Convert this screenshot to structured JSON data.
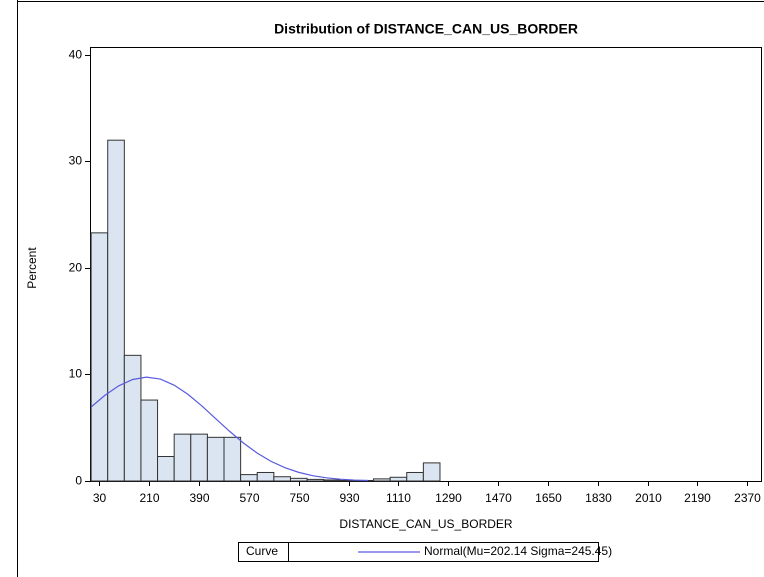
{
  "chart_data": {
    "type": "histogram",
    "title": "Distribution of DISTANCE_CAN_US_BORDER",
    "x_label": "DISTANCE_CAN_US_BORDER",
    "y_label": "Percent",
    "bins": [
      0,
      60,
      120,
      180,
      240,
      300,
      360,
      420,
      480,
      540,
      600,
      660,
      720,
      780,
      840,
      900,
      960,
      1020,
      1080,
      1140,
      1200,
      1260
    ],
    "values": [
      23.3,
      32,
      11.8,
      7.6,
      2.3,
      4.4,
      4.4,
      4.1,
      4.1,
      0.6,
      0.8,
      0.4,
      0.25,
      0.15,
      0.1,
      0.05,
      0.05,
      0.2,
      0.35,
      0.8,
      1.7
    ],
    "color": "#dbe5f1",
    "series": [
      {
        "name": "Normal(Mu=202.14 Sigma=245.45)",
        "color": "#5a5ae0",
        "x": [
          0,
          50,
          100,
          150,
          200,
          250,
          300,
          350,
          400,
          450,
          500,
          550,
          600,
          650,
          700,
          750,
          800,
          850,
          900,
          950,
          1000
        ],
        "values": [
          6.95,
          8.05,
          8.94,
          9.53,
          9.75,
          9.57,
          9.0,
          8.13,
          7.05,
          5.85,
          4.67,
          3.57,
          2.62,
          1.84,
          1.25,
          0.81,
          0.5,
          0.3,
          0.17,
          0.09,
          0.05
        ]
      }
    ],
    "legend_title": "Curve",
    "xlim": [
      -4,
      2423
    ],
    "xticks": [
      30,
      210,
      390,
      570,
      750,
      930,
      1110,
      1290,
      1470,
      1650,
      1830,
      2010,
      2190,
      2370
    ],
    "ylim": [
      0,
      40.75
    ],
    "yticks": [
      0,
      10,
      20,
      30,
      40
    ]
  }
}
